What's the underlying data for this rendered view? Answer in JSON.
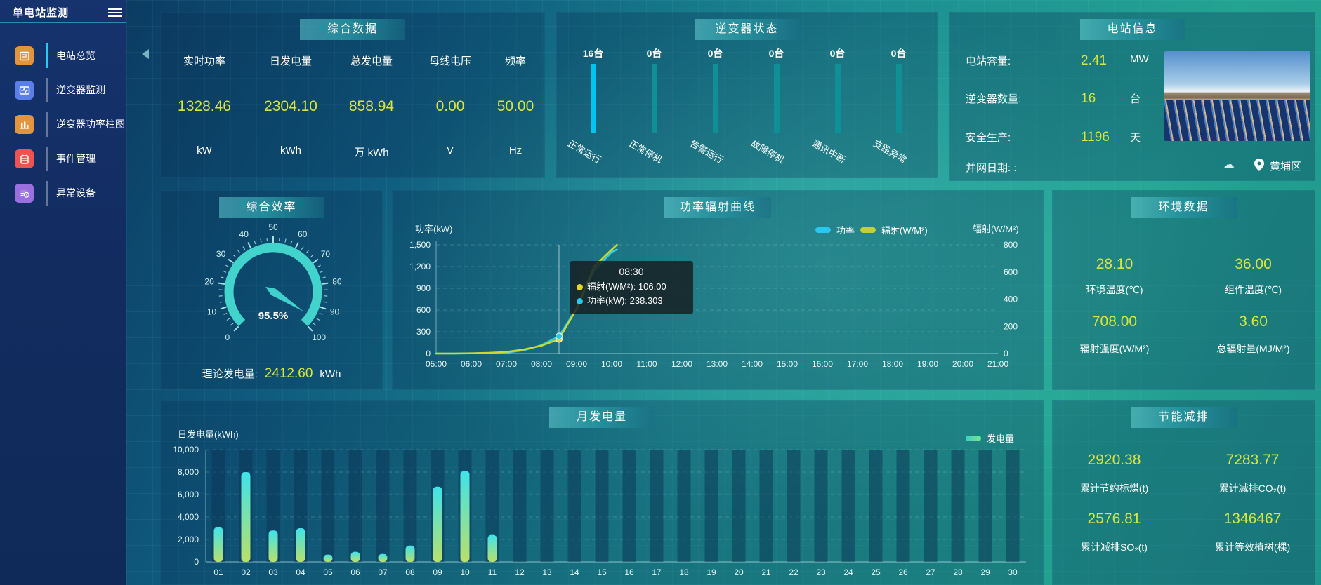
{
  "app": {
    "title": "单电站监测"
  },
  "sidebar": {
    "items": [
      {
        "label": "电站总览",
        "active": true
      },
      {
        "label": "逆变器监测",
        "active": false
      },
      {
        "label": "逆变器功率柱图",
        "active": false
      },
      {
        "label": "事件管理",
        "active": false
      },
      {
        "label": "异常设备",
        "active": false
      }
    ]
  },
  "colors": {
    "value_yellow": "#d9e53c",
    "power_line": "#35d3e8",
    "radiation_line": "#cdd92f",
    "status_bar_active": "#00c4f2",
    "status_bar": "#0f8f96",
    "bar_gradient_top": "#3fe3ea",
    "bar_gradient_bottom": "#b9e06a"
  },
  "panels": {
    "summary": {
      "title": "综合数据",
      "metrics": [
        {
          "label": "实时功率",
          "value": "1328.46",
          "unit": "kW"
        },
        {
          "label": "日发电量",
          "value": "2304.10",
          "unit": "kWh"
        },
        {
          "label": "总发电量",
          "value": "858.94",
          "unit": "万 kWh"
        },
        {
          "label": "母线电压",
          "value": "0.00",
          "unit": "V"
        },
        {
          "label": "频率",
          "value": "50.00",
          "unit": "Hz"
        }
      ]
    },
    "inverter_status": {
      "title": "逆变器状态",
      "statuses": [
        {
          "count": "16台",
          "label": "正常运行",
          "highlight": true
        },
        {
          "count": "0台",
          "label": "正常停机",
          "highlight": false
        },
        {
          "count": "0台",
          "label": "告警运行",
          "highlight": false
        },
        {
          "count": "0台",
          "label": "故障停机",
          "highlight": false
        },
        {
          "count": "0台",
          "label": "通讯中断",
          "highlight": false
        },
        {
          "count": "0台",
          "label": "支路异常",
          "highlight": false
        }
      ]
    },
    "station_info": {
      "title": "电站信息",
      "rows": [
        {
          "label": "电站容量:",
          "value": "2.41",
          "unit": "MW"
        },
        {
          "label": "逆变器数量:",
          "value": "16",
          "unit": "台"
        },
        {
          "label": "安全生产:",
          "value": "1196",
          "unit": "天"
        },
        {
          "label": "并网日期: :",
          "value": "",
          "unit": ""
        }
      ],
      "location": "黄埔区"
    },
    "efficiency": {
      "title": "综合效率",
      "theory_label": "理论发电量:",
      "theory_value": "2412.60",
      "theory_unit": "kWh"
    },
    "environment": {
      "title": "环境数据",
      "metrics": [
        {
          "value": "28.10",
          "label": "环境温度(℃)"
        },
        {
          "value": "36.00",
          "label": "组件温度(℃)"
        },
        {
          "value": "708.00",
          "label": "辐射强度(W/M²)"
        },
        {
          "value": "3.60",
          "label": "总辐射量(MJ/M²)"
        }
      ]
    },
    "saving": {
      "title": "节能减排",
      "metrics": [
        {
          "value": "2920.38",
          "label": "累计节约标煤(t)"
        },
        {
          "value": "7283.77",
          "label": "累计减排CO₂(t)"
        },
        {
          "value": "2576.81",
          "label": "累计减排SO₂(t)"
        },
        {
          "value": "1346467",
          "label": "累计等效植树(棵)"
        }
      ]
    }
  },
  "chart_data": [
    {
      "id": "power_radiation",
      "type": "line",
      "title": "功率辐射曲线",
      "ylabel_left": "功率(kW)",
      "ylabel_right": "辐射(W/M²)",
      "ylim_left": [
        0,
        1500
      ],
      "ylim_right": [
        0,
        800
      ],
      "y_ticks_left": [
        "0",
        "300",
        "600",
        "900",
        "1,200",
        "1,500"
      ],
      "y_ticks_right": [
        "0",
        "200",
        "400",
        "600",
        "800"
      ],
      "x_ticks": [
        "05:00",
        "06:00",
        "07:00",
        "08:00",
        "09:00",
        "10:00",
        "11:00",
        "12:00",
        "13:00",
        "14:00",
        "15:00",
        "16:00",
        "17:00",
        "18:00",
        "19:00",
        "20:00",
        "21:00"
      ],
      "grid": "dashed",
      "legend_position": "top-right",
      "series": [
        {
          "name": "功率",
          "axis": "left",
          "color": "#35d3e8",
          "points": [
            [
              5,
              0
            ],
            [
              5.5,
              0
            ],
            [
              6,
              2
            ],
            [
              6.5,
              5
            ],
            [
              7,
              12
            ],
            [
              7.5,
              45
            ],
            [
              8,
              115
            ],
            [
              8.5,
              238.3
            ],
            [
              9,
              620
            ],
            [
              9.5,
              1150
            ],
            [
              10,
              1400
            ],
            [
              10.15,
              1435
            ]
          ]
        },
        {
          "name": "辐射(W/M²)",
          "axis": "right",
          "color": "#cdd92f",
          "points": [
            [
              5,
              0
            ],
            [
              5.5,
              0
            ],
            [
              6,
              2
            ],
            [
              6.5,
              5
            ],
            [
              7,
              12
            ],
            [
              7.5,
              30
            ],
            [
              8,
              58
            ],
            [
              8.5,
              106
            ],
            [
              9,
              330
            ],
            [
              9.5,
              640
            ],
            [
              10,
              765
            ],
            [
              10.15,
              800
            ]
          ]
        }
      ],
      "tooltip": {
        "time": "08:30",
        "x": 8.5,
        "power": 238.303,
        "radiation": 106,
        "rows": [
          {
            "text": "辐射(W/M²): 106.00",
            "color": "#e8d522"
          },
          {
            "text": "功率(kW): 238.303",
            "color": "#29c7f2"
          }
        ]
      }
    },
    {
      "id": "monthly_energy",
      "type": "bar",
      "title": "月发电量",
      "ylabel": "日发电量(kWh)",
      "legend": "发电量",
      "ylim": [
        0,
        10000
      ],
      "y_ticks": [
        "0",
        "2,000",
        "4,000",
        "6,000",
        "8,000",
        "10,000"
      ],
      "grid": "dashed",
      "categories": [
        "01",
        "02",
        "03",
        "04",
        "05",
        "06",
        "07",
        "08",
        "09",
        "10",
        "11",
        "12",
        "13",
        "14",
        "15",
        "16",
        "17",
        "18",
        "19",
        "20",
        "21",
        "22",
        "23",
        "24",
        "25",
        "26",
        "27",
        "28",
        "29",
        "30"
      ],
      "values": [
        3100,
        8000,
        2800,
        3000,
        650,
        900,
        700,
        1450,
        6700,
        8100,
        2400,
        0,
        0,
        0,
        0,
        0,
        0,
        0,
        0,
        0,
        0,
        0,
        0,
        0,
        0,
        0,
        0,
        0,
        0,
        0
      ]
    },
    {
      "id": "efficiency_gauge",
      "type": "gauge",
      "min": 0,
      "max": 100,
      "value": 95.5,
      "display": "95.5%",
      "tick_labels": [
        0,
        10,
        20,
        30,
        40,
        50,
        60,
        70,
        80,
        90,
        100
      ]
    }
  ]
}
